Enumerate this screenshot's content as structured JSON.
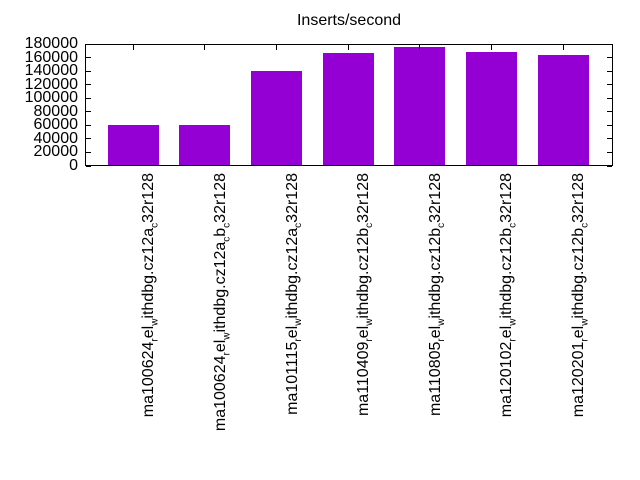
{
  "title": "Inserts/second",
  "colors": {
    "bar_fill": "#9400d3",
    "axis": "#000000",
    "background": "#ffffff"
  },
  "y_axis": {
    "tick_labels": [
      "0",
      "20000",
      "40000",
      "60000",
      "80000",
      "100000",
      "120000",
      "140000",
      "160000",
      "180000"
    ]
  },
  "x_axis": {
    "labels_display": [
      "ma100624_{r}el_{w}ithdbg.cz12a_{c}32r128",
      "ma100624_{r}el_{w}ithdbg.cz12a_{c}b_{c}32r128",
      "ma101115_{r}el_{w}ithdbg.cz12a_{c}32r128",
      "ma110409_{r}el_{w}ithdbg.cz12b_{c}32r128",
      "ma110805_{r}el_{w}ithdbg.cz12b_{c}32r128",
      "ma120102_{r}el_{w}ithdbg.cz12b_{c}32r128",
      "ma120201_{r}el_{w}ithdbg.cz12b_{c}32r128"
    ]
  },
  "chart_data": {
    "type": "bar",
    "title": "Inserts/second",
    "categories": [
      "ma100624_rel_withdbg.cz12a_c32r128",
      "ma100624_rel_withdbg.cz12a_cb_c32r128",
      "ma101115_rel_withdbg.cz12a_c32r128",
      "ma110409_rel_withdbg.cz12b_c32r128",
      "ma110805_rel_withdbg.cz12b_c32r128",
      "ma120102_rel_withdbg.cz12b_c32r128",
      "ma120201_rel_withdbg.cz12b_c32r128"
    ],
    "values": [
      60500,
      59800,
      140000,
      166500,
      175500,
      168500,
      163500
    ],
    "xlabel": "",
    "ylabel": "",
    "ylim": [
      0,
      180000
    ],
    "yticks": [
      0,
      20000,
      40000,
      60000,
      80000,
      100000,
      120000,
      140000,
      160000,
      180000
    ],
    "x_tick_rotation": 90,
    "grid": false,
    "legend_position": "none",
    "bar_color": "#9400d3"
  }
}
